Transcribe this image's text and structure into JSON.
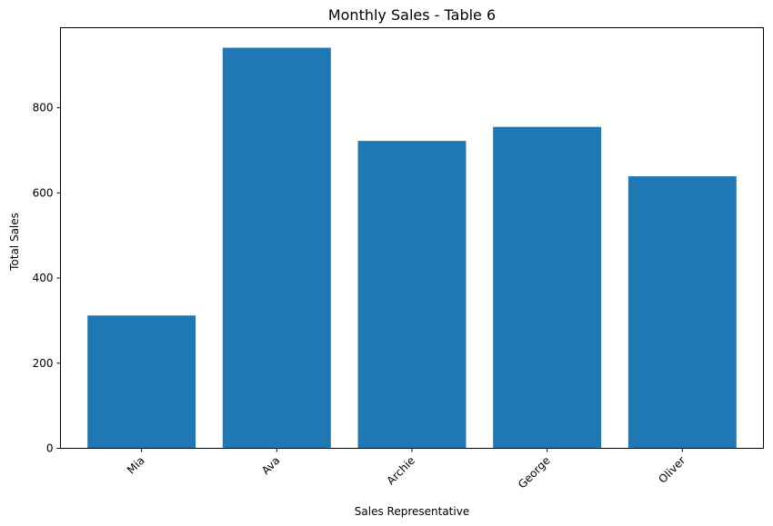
{
  "chart_data": {
    "type": "bar",
    "title": "Monthly Sales - Table 6",
    "xlabel": "Sales Representative",
    "ylabel": "Total Sales",
    "categories": [
      "Mia",
      "Ava",
      "Archie",
      "George",
      "Oliver"
    ],
    "values": [
      312,
      941,
      722,
      755,
      639
    ],
    "ylim": [
      0,
      988
    ],
    "yticks": [
      0,
      200,
      400,
      600,
      800
    ],
    "xtick_rotation": 45,
    "bar_color": "#1f77b4",
    "grid": false,
    "legend": false
  }
}
